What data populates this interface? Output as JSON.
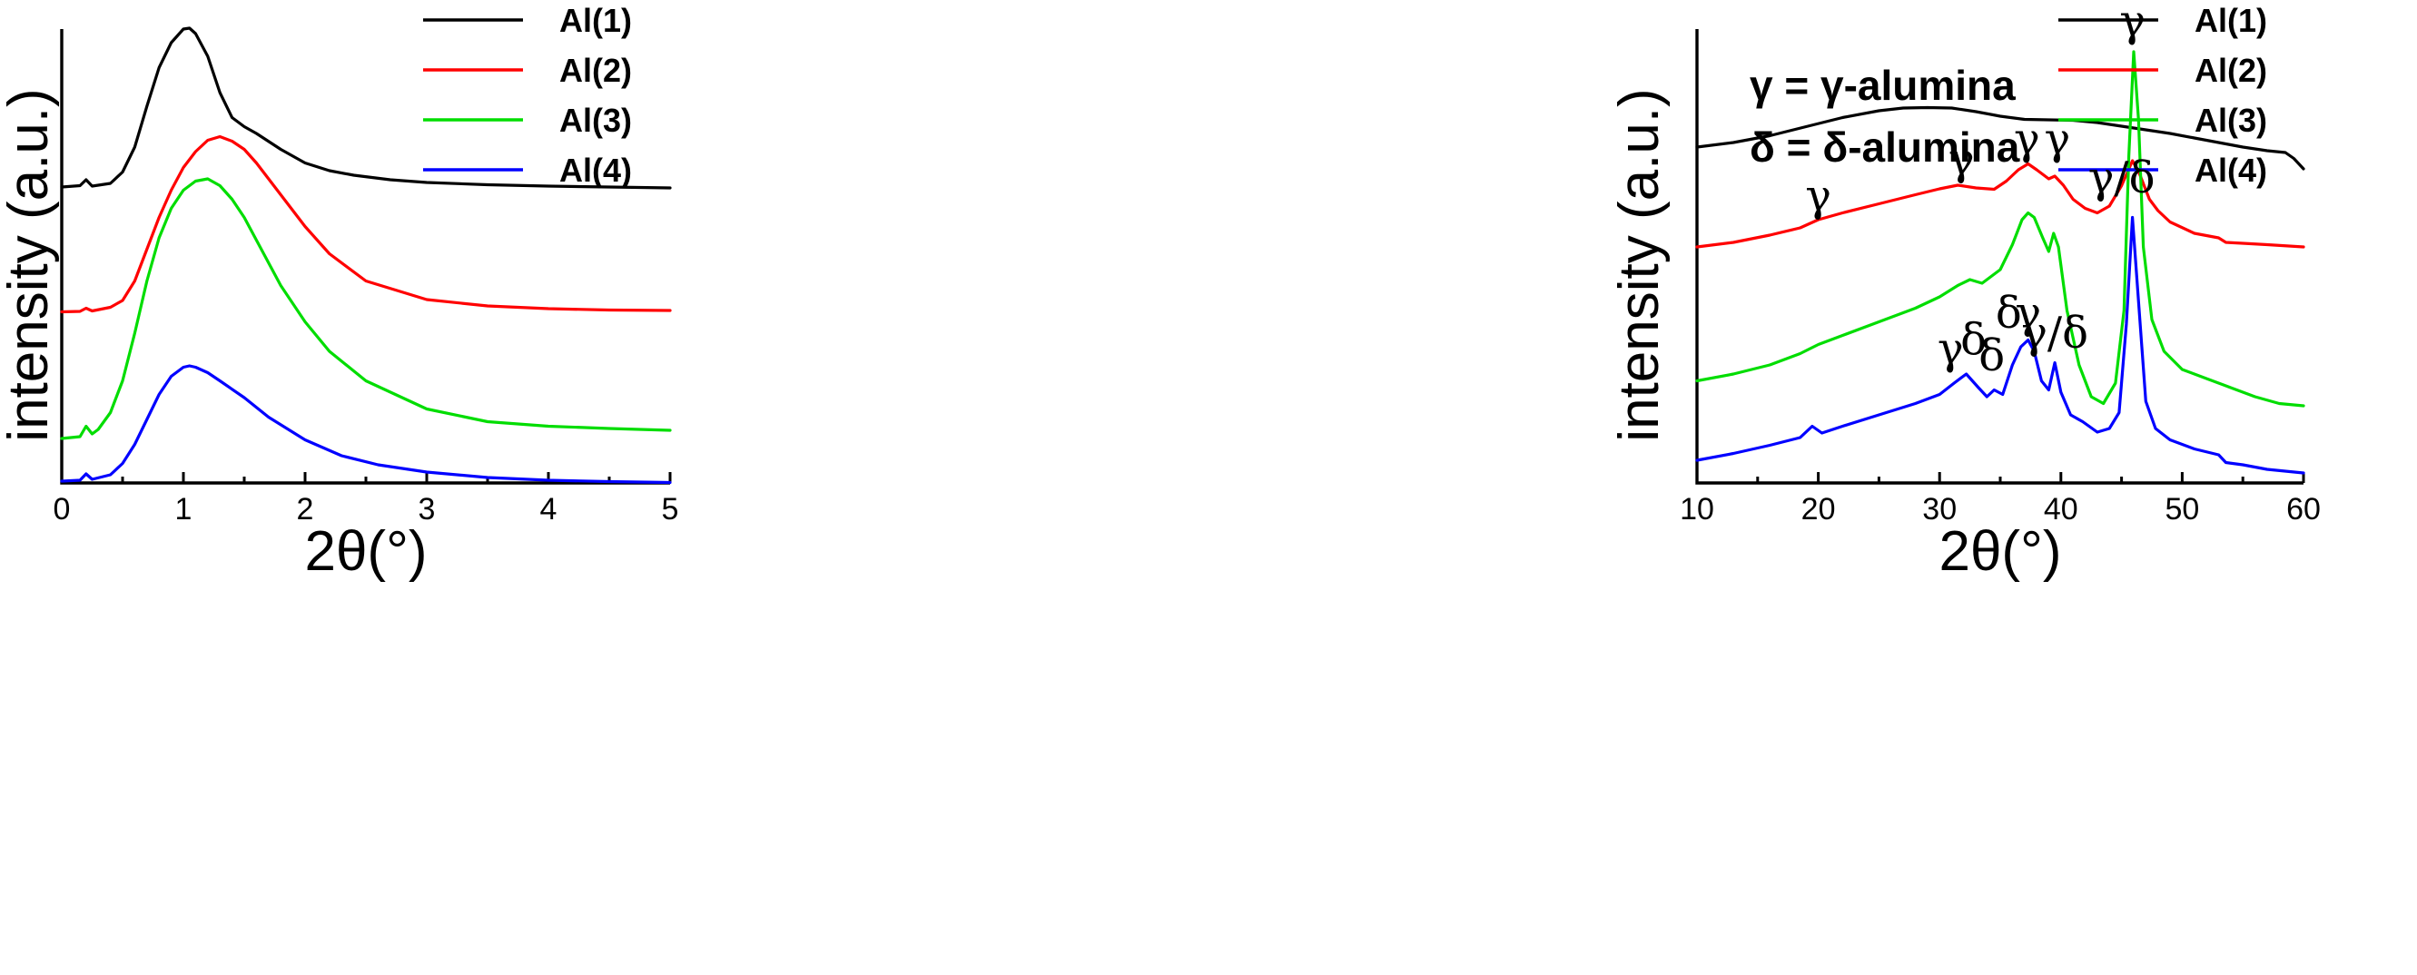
{
  "colors": {
    "Al(1)": "#000000",
    "Al(2)": "#ff0000",
    "Al(3)": "#00dd00",
    "Al(4)": "#0000ff"
  },
  "chart_data": [
    {
      "type": "line",
      "panel": "left",
      "xlabel": "2θ(°)",
      "ylabel": "intensity (a.u.)",
      "xlim": [
        0,
        5
      ],
      "ylim": [
        0,
        100
      ],
      "xticks": [
        "0",
        "1",
        "2",
        "3",
        "4",
        "5"
      ],
      "legend": [
        "Al(1)",
        "Al(2)",
        "Al(3)",
        "Al(4)"
      ],
      "legend_position": "top-right",
      "series": [
        {
          "name": "Al(1)",
          "color": "#000000",
          "x": [
            0,
            0.15,
            0.2,
            0.25,
            0.4,
            0.5,
            0.6,
            0.7,
            0.8,
            0.9,
            1.0,
            1.05,
            1.1,
            1.2,
            1.3,
            1.4,
            1.5,
            1.6,
            1.8,
            2.0,
            2.2,
            2.4,
            2.7,
            3.0,
            3.5,
            4.0,
            4.5,
            5.0
          ],
          "y": [
            65.2,
            65.5,
            66.8,
            65.4,
            66.0,
            68.5,
            74.0,
            83.0,
            91.5,
            97.0,
            100.0,
            100.2,
            99.0,
            94.0,
            86.0,
            80.5,
            78.5,
            77.0,
            73.5,
            70.5,
            68.8,
            67.8,
            66.8,
            66.2,
            65.7,
            65.4,
            65.2,
            65.0
          ]
        },
        {
          "name": "Al(2)",
          "color": "#ff0000",
          "x": [
            0,
            0.15,
            0.2,
            0.25,
            0.4,
            0.5,
            0.6,
            0.7,
            0.8,
            0.9,
            1.0,
            1.1,
            1.2,
            1.3,
            1.4,
            1.5,
            1.6,
            1.8,
            2.0,
            2.2,
            2.5,
            3.0,
            3.5,
            4.0,
            4.5,
            5.0
          ],
          "y": [
            37.7,
            37.8,
            38.5,
            37.9,
            38.7,
            40.2,
            44.5,
            51.5,
            58.5,
            64.5,
            69.5,
            73.0,
            75.5,
            76.3,
            75.3,
            73.5,
            70.5,
            63.5,
            56.5,
            50.5,
            44.5,
            40.4,
            39.0,
            38.4,
            38.1,
            38.0
          ]
        },
        {
          "name": "Al(3)",
          "color": "#00dd00",
          "x": [
            0,
            0.15,
            0.2,
            0.25,
            0.3,
            0.4,
            0.5,
            0.6,
            0.7,
            0.8,
            0.9,
            1.0,
            1.1,
            1.2,
            1.3,
            1.4,
            1.5,
            1.6,
            1.8,
            2.0,
            2.2,
            2.5,
            3.0,
            3.5,
            4.0,
            4.5,
            5.0
          ],
          "y": [
            9.8,
            10.2,
            12.5,
            10.8,
            11.8,
            15.5,
            22.5,
            33.0,
            44.5,
            54.0,
            60.5,
            64.5,
            66.5,
            67.0,
            65.5,
            62.5,
            58.5,
            53.5,
            43.5,
            35.5,
            29.0,
            22.5,
            16.3,
            13.5,
            12.5,
            12.0,
            11.6
          ]
        },
        {
          "name": "Al(4)",
          "color": "#0000ff",
          "x": [
            0,
            0.15,
            0.2,
            0.25,
            0.4,
            0.5,
            0.6,
            0.7,
            0.8,
            0.9,
            1.0,
            1.05,
            1.1,
            1.2,
            1.3,
            1.5,
            1.7,
            2.0,
            2.3,
            2.6,
            3.0,
            3.5,
            4.0,
            4.5,
            5.0
          ],
          "y": [
            0.4,
            0.6,
            2.0,
            0.8,
            1.8,
            4.3,
            8.5,
            14.0,
            19.5,
            23.5,
            25.5,
            25.8,
            25.5,
            24.3,
            22.5,
            18.8,
            14.5,
            9.5,
            6.0,
            4.0,
            2.4,
            1.2,
            0.6,
            0.3,
            0.1
          ]
        }
      ]
    },
    {
      "type": "line",
      "panel": "right",
      "xlabel": "2θ(°)",
      "ylabel": "intensity (a.u.)",
      "xlim": [
        10,
        60
      ],
      "ylim": [
        0,
        100
      ],
      "xticks": [
        "10",
        "20",
        "30",
        "40",
        "50",
        "60"
      ],
      "legend": [
        "Al(1)",
        "Al(2)",
        "Al(3)",
        "Al(4)"
      ],
      "legend_position": "top-right",
      "annotation_legend": [
        "γ = γ-alumina",
        "δ = δ-alumina"
      ],
      "series": [
        {
          "name": "Al(1)",
          "color": "#000000",
          "x": [
            10,
            13,
            16,
            19,
            22,
            25,
            27,
            29,
            31,
            33,
            35,
            37,
            39,
            41,
            43,
            45,
            47,
            49,
            51,
            53,
            55,
            57,
            58.5,
            59.2,
            60
          ],
          "y": [
            74.0,
            75.0,
            76.5,
            78.5,
            80.5,
            82.0,
            82.6,
            82.7,
            82.6,
            81.8,
            80.8,
            80.1,
            80.0,
            79.9,
            79.4,
            78.6,
            77.8,
            77.0,
            76.0,
            75.0,
            74.0,
            73.2,
            72.8,
            71.5,
            69.2
          ]
        },
        {
          "name": "Al(2)",
          "color": "#ff0000",
          "x": [
            10,
            13,
            16,
            18.5,
            20,
            22,
            25,
            28,
            30,
            31.5,
            33,
            34.5,
            35.5,
            36.5,
            37.3,
            38,
            39,
            39.5,
            40.2,
            41,
            42,
            43,
            44,
            45,
            45.9,
            46.5,
            47.3,
            48,
            49,
            51,
            53,
            53.6,
            55,
            57,
            60
          ],
          "y": [
            52.0,
            53.0,
            54.6,
            56.2,
            58.0,
            59.5,
            61.5,
            63.5,
            64.8,
            65.6,
            65.0,
            64.7,
            66.5,
            69.0,
            70.3,
            69.0,
            67.0,
            67.6,
            65.6,
            62.5,
            60.5,
            59.5,
            61.0,
            65.5,
            71.0,
            68.0,
            62.5,
            60.0,
            57.5,
            55.0,
            54.0,
            53.0,
            52.8,
            52.5,
            52.0
          ]
        },
        {
          "name": "Al(3)",
          "color": "#00dd00",
          "x": [
            10,
            13,
            16,
            18.5,
            20,
            22,
            25,
            28,
            30,
            31.5,
            32.5,
            33.5,
            35,
            36,
            36.8,
            37.3,
            37.8,
            38.5,
            39,
            39.4,
            39.8,
            40.5,
            41.5,
            42.5,
            43.5,
            44.5,
            45.2,
            45.6,
            46,
            46.4,
            46.8,
            47.5,
            48.5,
            50,
            52,
            53.5,
            54,
            56,
            58,
            60
          ],
          "y": [
            22.5,
            24.0,
            26.0,
            28.5,
            30.5,
            32.5,
            35.5,
            38.5,
            41.0,
            43.5,
            44.8,
            44.0,
            47.0,
            52.5,
            58.0,
            59.5,
            58.5,
            54.0,
            51.0,
            55.0,
            52.0,
            38.0,
            26.0,
            19.0,
            17.5,
            22.0,
            38.0,
            72.0,
            95.0,
            80.0,
            52.0,
            36.0,
            29.0,
            25.0,
            23.0,
            21.5,
            21.0,
            19.0,
            17.5,
            17.0
          ]
        },
        {
          "name": "Al(4)",
          "color": "#0000ff",
          "x": [
            10,
            13,
            16,
            18.5,
            19.5,
            20.3,
            22,
            25,
            28,
            30,
            31.2,
            32.2,
            33.2,
            33.9,
            34.5,
            35.2,
            36,
            36.7,
            37.3,
            37.8,
            38.4,
            39,
            39.5,
            40,
            40.8,
            41.8,
            43,
            44,
            44.8,
            45.4,
            45.9,
            46.4,
            47,
            47.8,
            49,
            51,
            53,
            53.6,
            55,
            57,
            60
          ],
          "y": [
            5.0,
            6.5,
            8.3,
            10.0,
            12.5,
            11.0,
            12.5,
            15.0,
            17.5,
            19.5,
            22.0,
            24.0,
            21.0,
            19.0,
            20.5,
            19.5,
            26.0,
            30.0,
            31.5,
            29.0,
            22.5,
            20.5,
            26.5,
            20.0,
            15.0,
            13.5,
            11.2,
            12.0,
            15.5,
            35.0,
            58.5,
            40.0,
            18.0,
            12.0,
            9.5,
            7.5,
            6.2,
            4.5,
            4.0,
            3.0,
            2.2
          ]
        }
      ],
      "annotations": [
        {
          "text": "γ",
          "x": 20,
          "y": 60,
          "series": "Al(2)"
        },
        {
          "text": "γ",
          "x": 31.8,
          "y": 68,
          "series": "Al(2)"
        },
        {
          "text": "γ",
          "x": 37.2,
          "y": 72.5,
          "series": "Al(2)"
        },
        {
          "text": "γ",
          "x": 39.7,
          "y": 72.5,
          "series": "Al(2)"
        },
        {
          "text": "γ/δ",
          "x": 45,
          "y": 64,
          "series": "Al(2)"
        },
        {
          "text": "γ",
          "x": 45.9,
          "y": 98.5,
          "series": "Al(3)"
        },
        {
          "text": "γ",
          "x": 30.9,
          "y": 26.3,
          "series": "Al(4)"
        },
        {
          "text": "δ",
          "x": 32.8,
          "y": 28.3,
          "series": "Al(4)"
        },
        {
          "text": "δ",
          "x": 34.3,
          "y": 24.8,
          "series": "Al(4)"
        },
        {
          "text": "δ",
          "x": 35.7,
          "y": 34.2,
          "series": "Al(4)"
        },
        {
          "text": "γ",
          "x": 37.3,
          "y": 34.2,
          "series": "Al(4)"
        },
        {
          "text": "γ/δ",
          "x": 39.5,
          "y": 29.8,
          "series": "Al(4)"
        }
      ]
    }
  ]
}
